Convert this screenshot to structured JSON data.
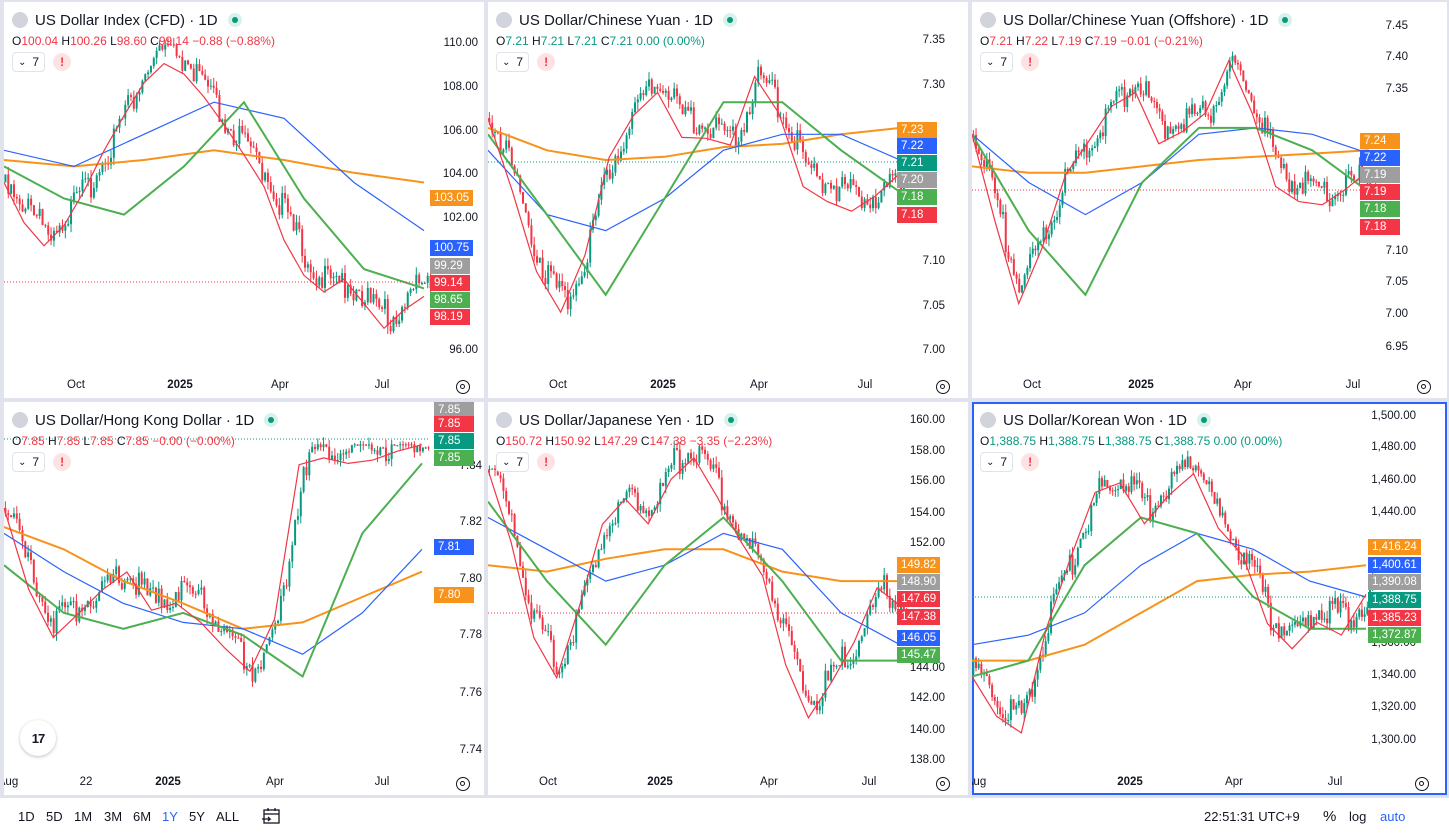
{
  "panes": [
    {
      "title": "US Dollar Index (CFD) · 1D",
      "ohlc": {
        "o": "100.04",
        "h": "100.26",
        "l": "98.60",
        "c": "99.14",
        "chg": "−0.88 (−0.88%)"
      },
      "dir": "down",
      "interval": "7",
      "ylabels": [
        "110.00",
        "108.00",
        "106.00",
        "104.00",
        "102.00",
        "96.00"
      ],
      "xlabels": [
        "Oct",
        "2025",
        "Apr",
        "Jul"
      ],
      "badges": [
        {
          "text": "103.05",
          "color": "#f7931a"
        },
        {
          "text": "100.75",
          "color": "#2962ff"
        },
        {
          "text": "99.29",
          "color": "#9e9e9e"
        },
        {
          "text": "99.14",
          "color": "#f23645"
        },
        {
          "text": "98.65",
          "color": "#4caf50"
        },
        {
          "text": "98.19",
          "color": "#f23645"
        }
      ]
    },
    {
      "title": "US Dollar/Chinese Yuan · 1D",
      "ohlc": {
        "o": "7.21",
        "h": "7.21",
        "l": "7.21",
        "c": "7.21",
        "chg": "0.00 (0.00%)"
      },
      "dir": "up",
      "interval": "7",
      "ylabels": [
        "7.35",
        "7.30",
        "7.10",
        "7.05",
        "7.00"
      ],
      "xlabels": [
        "Oct",
        "2025",
        "Apr",
        "Jul"
      ],
      "badges": [
        {
          "text": "7.23",
          "color": "#f7931a"
        },
        {
          "text": "7.22",
          "color": "#2962ff"
        },
        {
          "text": "7.21",
          "color": "#089981"
        },
        {
          "text": "7.20",
          "color": "#9e9e9e"
        },
        {
          "text": "7.18",
          "color": "#4caf50"
        },
        {
          "text": "7.18",
          "color": "#f23645"
        }
      ]
    },
    {
      "title": "US Dollar/Chinese Yuan (Offshore) · 1D",
      "ohlc": {
        "o": "7.21",
        "h": "7.22",
        "l": "7.19",
        "c": "7.19",
        "chg": "−0.01 (−0.21%)"
      },
      "dir": "down",
      "interval": "7",
      "ylabels": [
        "7.45",
        "7.40",
        "7.35",
        "7.10",
        "7.05",
        "7.00",
        "6.95"
      ],
      "xlabels": [
        "Oct",
        "2025",
        "Apr",
        "Jul"
      ],
      "badges": [
        {
          "text": "7.24",
          "color": "#f7931a"
        },
        {
          "text": "7.22",
          "color": "#2962ff"
        },
        {
          "text": "7.19",
          "color": "#9e9e9e"
        },
        {
          "text": "7.19",
          "color": "#f23645"
        },
        {
          "text": "7.18",
          "color": "#4caf50"
        },
        {
          "text": "7.18",
          "color": "#f23645"
        }
      ]
    },
    {
      "title": "US Dollar/Hong Kong Dollar · 1D",
      "ohlc": {
        "o": "7.85",
        "h": "7.85",
        "l": "7.85",
        "c": "7.85",
        "chg": "−0.00 (−0.00%)"
      },
      "dir": "down",
      "interval": "7",
      "ylabels": [
        "7.84",
        "7.82",
        "7.80",
        "7.78",
        "7.76",
        "7.74"
      ],
      "xlabels": [
        "Aug",
        "22",
        "2025",
        "Apr",
        "Jul"
      ],
      "badges": [
        {
          "text": "7.85",
          "color": "#9e9e9e"
        },
        {
          "text": "7.85",
          "color": "#f23645"
        },
        {
          "text": "7.85",
          "color": "#089981"
        },
        {
          "text": "7.85",
          "color": "#4caf50"
        },
        {
          "text": "7.81",
          "color": "#2962ff"
        },
        {
          "text": "7.80",
          "color": "#f7931a"
        }
      ]
    },
    {
      "title": "US Dollar/Japanese Yen · 1D",
      "ohlc": {
        "o": "150.72",
        "h": "150.92",
        "l": "147.29",
        "c": "147.38",
        "chg": "−3.35 (−2.23%)"
      },
      "dir": "down",
      "interval": "7",
      "ylabels": [
        "160.00",
        "158.00",
        "156.00",
        "154.00",
        "152.00",
        "144.00",
        "142.00",
        "140.00",
        "138.00"
      ],
      "xlabels": [
        "Oct",
        "2025",
        "Apr",
        "Jul"
      ],
      "badges": [
        {
          "text": "149.82",
          "color": "#f7931a"
        },
        {
          "text": "148.90",
          "color": "#9e9e9e"
        },
        {
          "text": "147.69",
          "color": "#f23645"
        },
        {
          "text": "147.38",
          "color": "#f23645"
        },
        {
          "text": "146.05",
          "color": "#2962ff"
        },
        {
          "text": "145.47",
          "color": "#4caf50"
        }
      ]
    },
    {
      "title": "US Dollar/Korean Won · 1D",
      "ohlc": {
        "o": "1,388.75",
        "h": "1,388.75",
        "l": "1,388.75",
        "c": "1,388.75",
        "chg": "0.00 (0.00%)"
      },
      "dir": "up",
      "interval": "7",
      "ylabels": [
        "1,500.00",
        "1,480.00",
        "1,460.00",
        "1,440.00",
        "1,360.00",
        "1,340.00",
        "1,320.00",
        "1,300.00"
      ],
      "xlabels": [
        "Aug",
        "2025",
        "Apr",
        "Jul"
      ],
      "badges": [
        {
          "text": "1,416.24",
          "color": "#f7931a"
        },
        {
          "text": "1,400.61",
          "color": "#2962ff"
        },
        {
          "text": "1,390.08",
          "color": "#9e9e9e"
        },
        {
          "text": "1,388.75",
          "color": "#089981"
        },
        {
          "text": "1,385.23",
          "color": "#f23645"
        },
        {
          "text": "1,372.87",
          "color": "#4caf50"
        }
      ]
    }
  ],
  "ranges": [
    "1D",
    "5D",
    "1M",
    "3M",
    "6M",
    "1Y",
    "5Y",
    "ALL"
  ],
  "active_range": "1Y",
  "clock": "22:51:31 UTC+9",
  "bottom_right": {
    "percent": "%",
    "log": "log",
    "auto": "auto"
  },
  "tv_logo": "17",
  "colors": {
    "up": "#089981",
    "down": "#f23645",
    "sma_fast": "#f23645",
    "sma_mid": "#4caf50",
    "sma_slow": "#2962ff",
    "sma_long": "#f7931a",
    "accent": "#2962ff"
  }
}
